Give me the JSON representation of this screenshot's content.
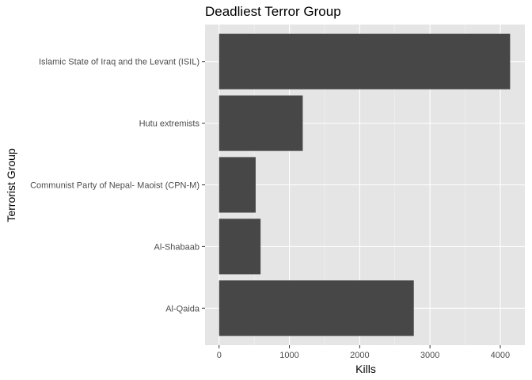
{
  "chart_data": {
    "type": "bar",
    "orientation": "horizontal",
    "title": "Deadliest Terror Group",
    "xlabel": "Kills",
    "ylabel": "Terrorist Group",
    "categories": [
      "Islamic State of Iraq and the Levant (ISIL)",
      "Hutu extremists",
      "Communist Party of Nepal- Maoist (CPN-M)",
      "Al-Shabaab",
      "Al-Qaida"
    ],
    "values": [
      4140,
      1190,
      520,
      590,
      2770
    ],
    "xlim": [
      -200,
      4350
    ],
    "xticks": [
      0,
      1000,
      2000,
      3000,
      4000
    ],
    "xtick_labels": [
      "0",
      "1000",
      "2000",
      "3000",
      "4000"
    ],
    "grid": true,
    "colors": {
      "bar": "#474747",
      "panel_background": "#e5e5e5",
      "grid_major": "#ffffff",
      "grid_minor": "#f2f2f2"
    }
  }
}
